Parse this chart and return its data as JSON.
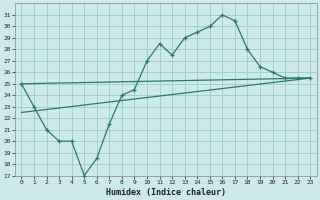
{
  "xlabel": "Humidex (Indice chaleur)",
  "bg_color": "#cceaea",
  "grid_color": "#99cccc",
  "line_color": "#2a7a6a",
  "xlim": [
    -0.5,
    23.5
  ],
  "ylim": [
    17,
    32
  ],
  "xticks": [
    0,
    1,
    2,
    3,
    4,
    5,
    6,
    7,
    8,
    9,
    10,
    11,
    12,
    13,
    14,
    15,
    16,
    17,
    18,
    19,
    20,
    21,
    22,
    23
  ],
  "yticks": [
    17,
    18,
    19,
    20,
    21,
    22,
    23,
    24,
    25,
    26,
    27,
    28,
    29,
    30,
    31
  ],
  "line1_x": [
    0,
    1,
    2,
    3,
    4,
    5,
    6,
    7,
    8,
    9,
    10,
    11,
    12,
    13,
    14,
    15,
    16,
    17,
    18,
    19,
    20,
    21,
    22,
    23
  ],
  "line1_y": [
    25.0,
    23.0,
    21.0,
    20.0,
    20.0,
    17.0,
    18.5,
    21.5,
    24.0,
    24.5,
    27.0,
    28.5,
    27.5,
    29.0,
    29.5,
    30.0,
    31.0,
    30.5,
    28.0,
    26.5,
    26.0,
    25.5,
    25.5,
    25.5
  ],
  "line2_x": [
    0,
    23
  ],
  "line2_y": [
    25.0,
    25.5
  ],
  "line3_x": [
    0,
    23
  ],
  "line3_y": [
    22.5,
    25.5
  ]
}
